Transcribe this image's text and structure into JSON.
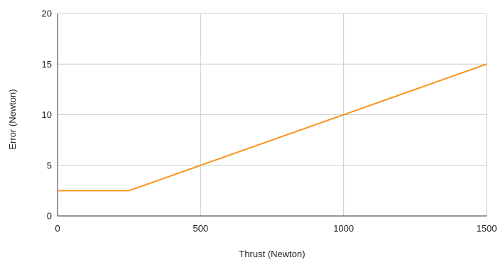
{
  "chart_data": {
    "type": "line",
    "title": "",
    "xlabel": "Thrust (Newton)",
    "ylabel": "Error (Newton)",
    "xlim": [
      0,
      1500
    ],
    "ylim": [
      0,
      20
    ],
    "x_ticks": [
      0,
      500,
      1000,
      1500
    ],
    "y_ticks": [
      0,
      5,
      10,
      15,
      20
    ],
    "grid": true,
    "legend": "none",
    "series": [
      {
        "color": "#f7941d",
        "points": [
          {
            "x": 0,
            "y": 2.5
          },
          {
            "x": 250,
            "y": 2.5
          },
          {
            "x": 1500,
            "y": 15
          }
        ]
      }
    ]
  },
  "colors": {
    "grid": "#cccccc",
    "axis": "#333333",
    "text": "#222222"
  }
}
